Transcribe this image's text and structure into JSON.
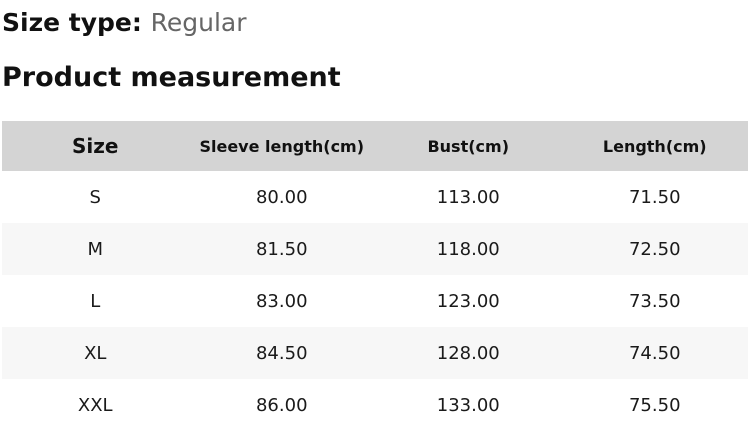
{
  "header": {
    "size_type_label": "Size type:",
    "size_type_value": "Regular",
    "section_title": "Product measurement"
  },
  "table": {
    "columns": [
      "Size",
      "Sleeve length(cm)",
      "Bust(cm)",
      "Length(cm)"
    ],
    "rows": [
      [
        "S",
        "80.00",
        "113.00",
        "71.50"
      ],
      [
        "M",
        "81.50",
        "118.00",
        "72.50"
      ],
      [
        "L",
        "83.00",
        "123.00",
        "73.50"
      ],
      [
        "XL",
        "84.50",
        "128.00",
        "74.50"
      ],
      [
        "XXL",
        "86.00",
        "133.00",
        "75.50"
      ]
    ]
  },
  "colors": {
    "header_row_bg": "#d4d4d4",
    "stripe_row_bg": "#f7f7f7",
    "heading_text": "#111111",
    "muted_text": "#666666",
    "body_text": "#1a1a1a"
  }
}
